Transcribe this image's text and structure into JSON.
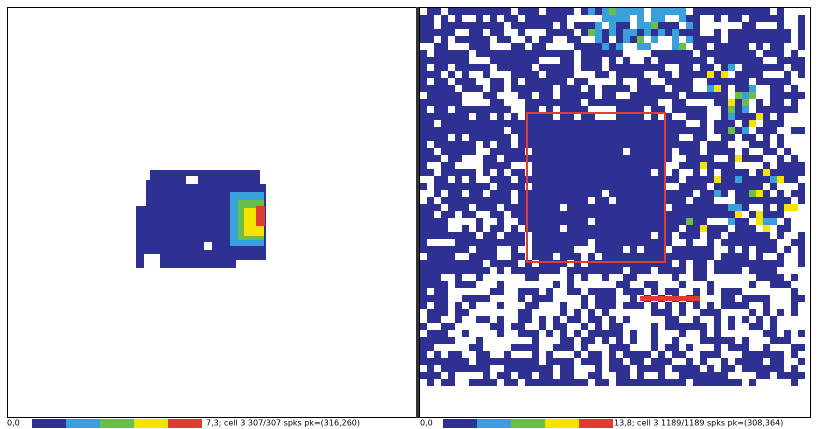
{
  "left_panel": {
    "min_label": "0,0",
    "info": "7,3; cell 3 307/307 spks pk=(316,260)"
  },
  "right_panel": {
    "min_label": "0,0",
    "info": "13,8; cell 3 1189/1189 spks pk=(308,364)"
  }
}
